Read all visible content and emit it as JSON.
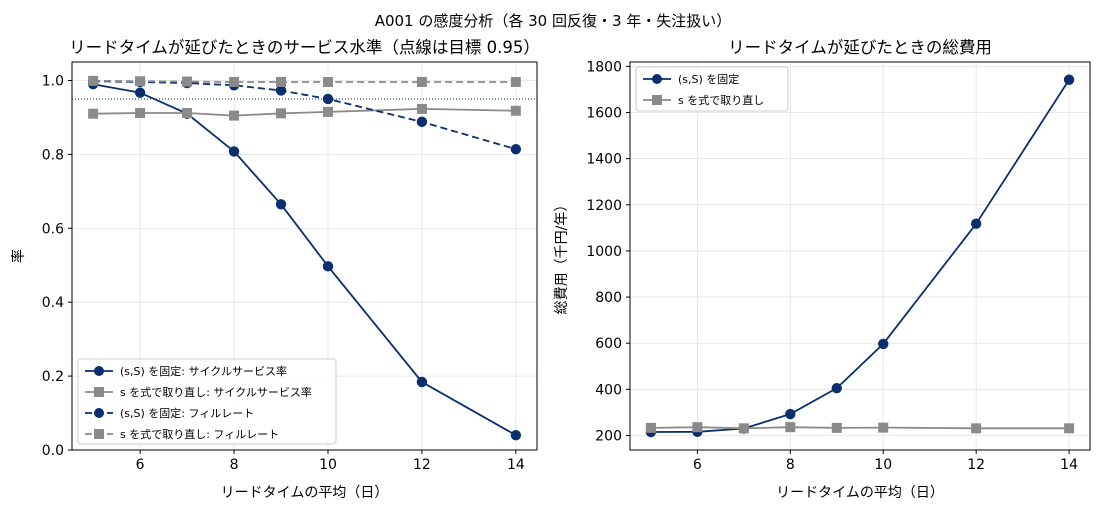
{
  "suptitle": "A001 の感度分析（各 30 回反復・3 年・失注扱い）",
  "chart_data": [
    {
      "type": "line",
      "title": "リードタイムが延びたときのサービス水準（点線は目標 0.95）",
      "xlabel": "リードタイムの平均（日）",
      "ylabel": "率",
      "x": [
        5,
        6,
        7,
        8,
        9,
        10,
        12,
        14
      ],
      "xlim": [
        4.55,
        14.45
      ],
      "ylim": [
        0.0,
        1.05
      ],
      "xticks": [
        6,
        8,
        10,
        12,
        14
      ],
      "yticks": [
        0.0,
        0.2,
        0.4,
        0.6,
        0.8,
        1.0
      ],
      "ytick_labels": [
        "0.0",
        "0.2",
        "0.4",
        "0.6",
        "0.8",
        "1.0"
      ],
      "target_line": 0.95,
      "grid": true,
      "legend_position": "lower-left",
      "series": [
        {
          "name": "(s,S) を固定: サイクルサービス率",
          "values": [
            0.99,
            0.967,
            0.91,
            0.808,
            0.665,
            0.497,
            0.184,
            0.04
          ],
          "color": "#0b2e6e",
          "marker": "circle",
          "linestyle": "solid"
        },
        {
          "name": "s を式で取り直し: サイクルサービス率",
          "values": [
            0.91,
            0.912,
            0.912,
            0.905,
            0.911,
            0.915,
            0.923,
            0.918
          ],
          "color": "#8a8a8a",
          "marker": "square",
          "linestyle": "solid"
        },
        {
          "name": "(s,S) を固定: フィルレート",
          "values": [
            0.998,
            0.996,
            0.993,
            0.987,
            0.973,
            0.95,
            0.888,
            0.814
          ],
          "color": "#0b2e6e",
          "marker": "circle",
          "linestyle": "dashed"
        },
        {
          "name": "s を式で取り直し: フィルレート",
          "values": [
            0.999,
            0.998,
            0.997,
            0.996,
            0.996,
            0.996,
            0.996,
            0.996
          ],
          "color": "#8a8a8a",
          "marker": "square",
          "linestyle": "dashed"
        }
      ]
    },
    {
      "type": "line",
      "title": "リードタイムが延びたときの総費用",
      "xlabel": "リードタイムの平均（日）",
      "ylabel": "総費用（千円/年）",
      "x": [
        5,
        6,
        7,
        8,
        9,
        10,
        12,
        14
      ],
      "xlim": [
        4.55,
        14.45
      ],
      "ylim": [
        137,
        1819
      ],
      "xticks": [
        6,
        8,
        10,
        12,
        14
      ],
      "yticks": [
        200,
        400,
        600,
        800,
        1000,
        1200,
        1400,
        1600,
        1800
      ],
      "ytick_labels": [
        "200",
        "400",
        "600",
        "800",
        "1000",
        "1200",
        "1400",
        "1600",
        "1800"
      ],
      "grid": true,
      "legend_position": "top-left",
      "series": [
        {
          "name": "(s,S) を固定",
          "values": [
            215,
            216,
            230,
            293,
            405,
            597,
            1118,
            1742
          ],
          "color": "#0b2e6e",
          "marker": "circle",
          "linestyle": "solid"
        },
        {
          "name": "s を式で取り直し",
          "values": [
            233,
            236,
            231,
            236,
            233,
            234,
            231,
            231
          ],
          "color": "#8a8a8a",
          "marker": "square",
          "linestyle": "solid"
        }
      ]
    }
  ]
}
